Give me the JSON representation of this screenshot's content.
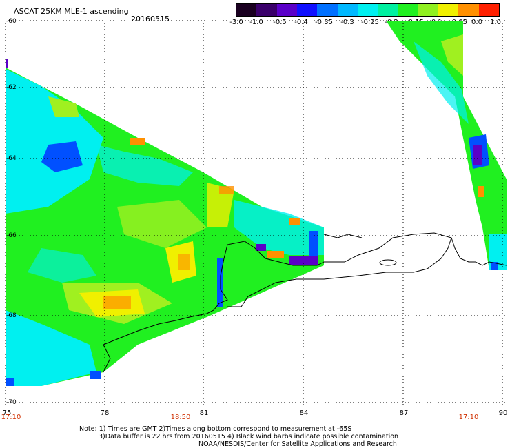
{
  "title": "ASCAT 25KM MLE-1 ascending",
  "date": "20160515",
  "colorbar": {
    "labels": [
      "-3.0",
      "-1.0",
      "-0.5",
      "-0.4",
      "-0.35",
      "-0.3",
      "-0.25",
      "-0.2",
      "-0.15",
      "-0.1",
      "-0.05",
      "0.0",
      "1.0"
    ],
    "colors": [
      "#1a0020",
      "#3a006a",
      "#5a00c8",
      "#1010ff",
      "#0070ff",
      "#00b8ff",
      "#00f0f0",
      "#00f0a0",
      "#20f020",
      "#90f020",
      "#f0f000",
      "#ff9000",
      "#ff2000"
    ]
  },
  "y_axis_labels": [
    "-60",
    "-62",
    "-64",
    "-66",
    "-68",
    "-70"
  ],
  "x_axis_labels": [
    "75",
    "78",
    "81",
    "84",
    "87",
    "90"
  ],
  "time_labels": [
    "17:10",
    "18:50",
    "17:10"
  ],
  "notes": [
    "Note: 1) Times are GMT 2)Times along bottom correspond to measurement at -65S",
    "3)Data buffer is 22 hrs from 20160515 4) Black wind barbs indicate possible contamination",
    "NOAA/NESDIS/Center for Satellite Applications and Research"
  ],
  "swath_colors": {
    "cyan": "#00f0f0",
    "green": "#20f020",
    "yellow_green": "#a0f020",
    "yellow": "#f0f000",
    "orange": "#ff9000",
    "blue": "#0050ff",
    "violet": "#5a00c8"
  },
  "coastline_color": "#000000",
  "grid": "dotted"
}
